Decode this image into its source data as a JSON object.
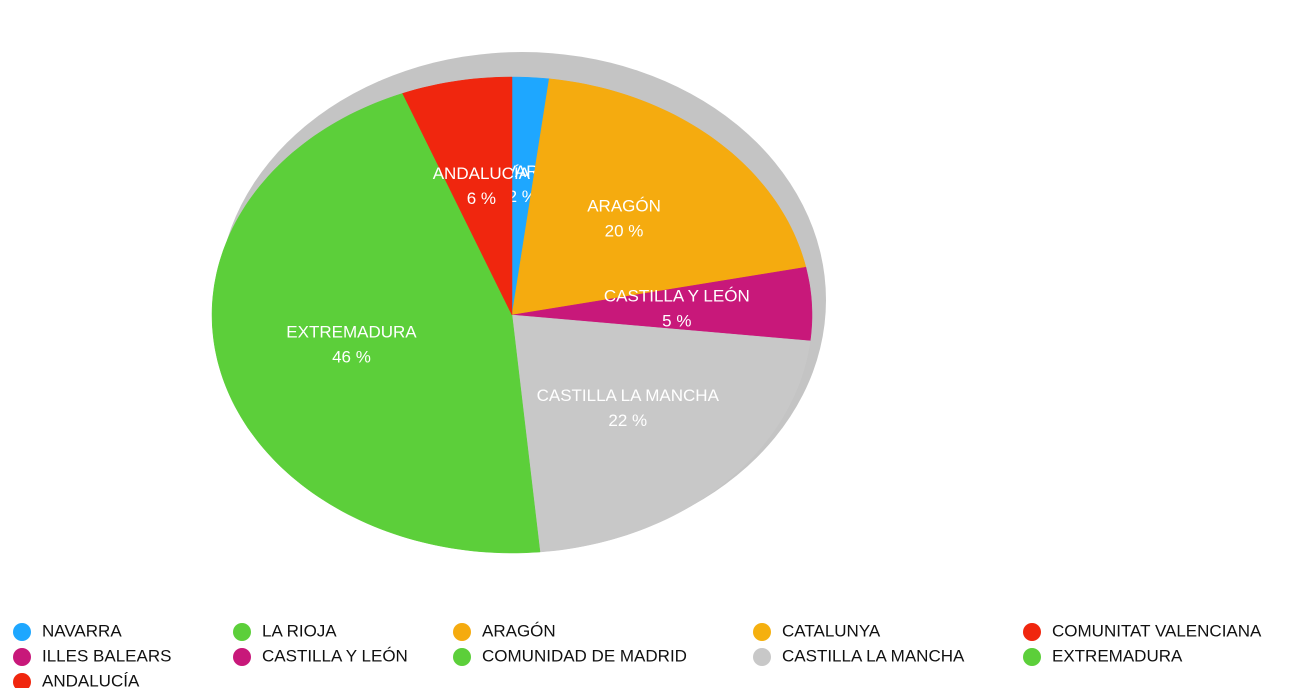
{
  "chart_data": {
    "type": "pie",
    "categories": [
      "NAVARRA",
      "LA RIOJA",
      "ARAGÓN",
      "CATALUNYA",
      "COMUNITAT VALENCIANA",
      "ILLES BALEARS",
      "CASTILLA Y LEÓN",
      "COMUNIDAD DE MADRID",
      "CASTILLA LA MANCHA",
      "EXTREMADURA",
      "ANDALUCÍA"
    ],
    "values": [
      2,
      0,
      20,
      0,
      0,
      0,
      5,
      0,
      22,
      46,
      6
    ],
    "value_labels": [
      "2 %",
      null,
      "20 %",
      null,
      null,
      null,
      "5 %",
      null,
      "22 %",
      "46 %",
      "6 %"
    ],
    "colors": [
      "#1ea7ff",
      "#5ccf3a",
      "#f5ab0f",
      "#f5b00f",
      "#f0260e",
      "#c8187a",
      "#c8187a",
      "#5ccf3a",
      "#c8c8c8",
      "#5ccf3a",
      "#f0260e"
    ],
    "legend": "bottom"
  }
}
